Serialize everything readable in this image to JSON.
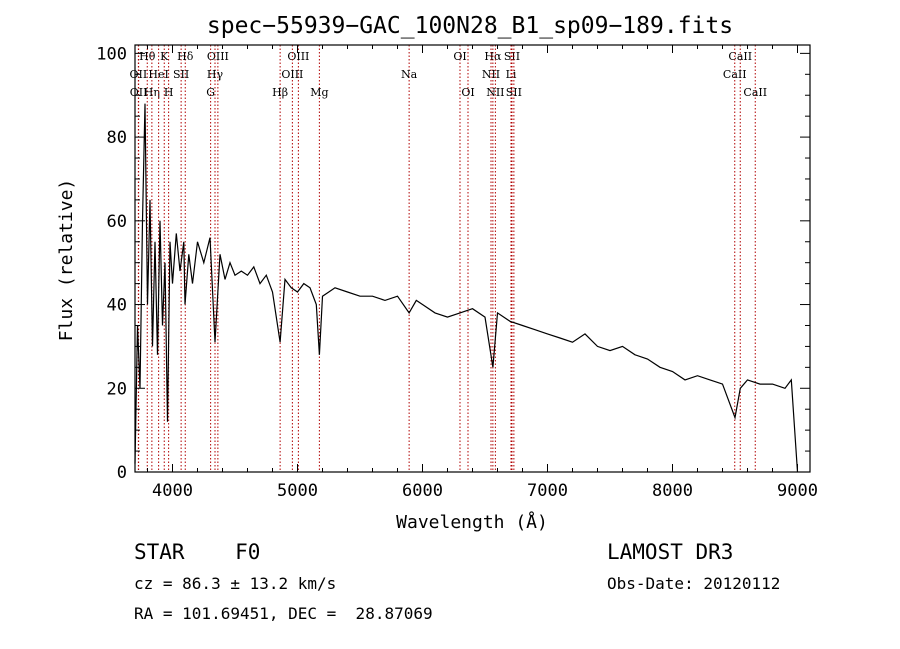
{
  "chart_data": {
    "type": "line",
    "title": "spec−55939−GAC_100N28_B1_sp09−189.fits",
    "xlabel": "Wavelength (Å)",
    "ylabel": "Flux (relative)",
    "xlim": [
      3700,
      9100
    ],
    "ylim": [
      0,
      102
    ],
    "x_ticks": [
      4000,
      5000,
      6000,
      7000,
      8000,
      9000
    ],
    "y_ticks": [
      0,
      20,
      40,
      60,
      80,
      100
    ],
    "x_tick_labels": [
      "4000",
      "5000",
      "6000",
      "7000",
      "8000",
      "9000"
    ],
    "y_tick_labels": [
      "0",
      "20",
      "40",
      "60",
      "80",
      "100"
    ],
    "series": [
      {
        "name": "flux",
        "x": [
          3700,
          3720,
          3740,
          3760,
          3780,
          3800,
          3820,
          3840,
          3860,
          3880,
          3900,
          3920,
          3940,
          3960,
          3980,
          4000,
          4030,
          4060,
          4090,
          4100,
          4130,
          4160,
          4200,
          4250,
          4300,
          4340,
          4380,
          4420,
          4460,
          4500,
          4550,
          4600,
          4650,
          4700,
          4750,
          4800,
          4861,
          4900,
          4950,
          5000,
          5050,
          5100,
          5150,
          5175,
          5200,
          5250,
          5300,
          5400,
          5500,
          5600,
          5700,
          5800,
          5893,
          5950,
          6000,
          6100,
          6200,
          6300,
          6400,
          6500,
          6563,
          6600,
          6700,
          6800,
          6900,
          7000,
          7100,
          7200,
          7300,
          7400,
          7500,
          7600,
          7700,
          7800,
          7900,
          8000,
          8100,
          8200,
          8300,
          8400,
          8500,
          8542,
          8600,
          8700,
          8800,
          8900,
          8950,
          9000
        ],
        "values": [
          2,
          35,
          20,
          60,
          88,
          40,
          65,
          30,
          55,
          28,
          60,
          35,
          50,
          12,
          55,
          45,
          57,
          48,
          55,
          40,
          52,
          45,
          55,
          50,
          56,
          31,
          52,
          46,
          50,
          47,
          48,
          47,
          49,
          45,
          47,
          43,
          31,
          46,
          44,
          43,
          45,
          44,
          40,
          28,
          42,
          43,
          44,
          43,
          42,
          42,
          41,
          42,
          38,
          41,
          40,
          38,
          37,
          38,
          39,
          37,
          25,
          38,
          36,
          35,
          34,
          33,
          32,
          31,
          33,
          30,
          29,
          30,
          28,
          27,
          25,
          24,
          22,
          23,
          22,
          21,
          13,
          20,
          22,
          21,
          21,
          20,
          22,
          0
        ]
      }
    ],
    "lines": [
      {
        "name": "Hθ",
        "wl": 3798,
        "row": 0
      },
      {
        "name": "OII",
        "wl": 3727,
        "row": 1
      },
      {
        "name": "OII",
        "wl": 3729,
        "row": 2
      },
      {
        "name": "Hη",
        "wl": 3835,
        "row": 2
      },
      {
        "name": "HeI",
        "wl": 3889,
        "row": 1
      },
      {
        "name": "K",
        "wl": 3934,
        "row": 0
      },
      {
        "name": "SII",
        "wl": 4069,
        "row": 1
      },
      {
        "name": "H",
        "wl": 3969,
        "row": 2
      },
      {
        "name": "Hδ",
        "wl": 4102,
        "row": 0
      },
      {
        "name": "OIII",
        "wl": 4363,
        "row": 0
      },
      {
        "name": "Hγ",
        "wl": 4340,
        "row": 1
      },
      {
        "name": "G",
        "wl": 4305,
        "row": 2
      },
      {
        "name": "Hβ",
        "wl": 4861,
        "row": 2
      },
      {
        "name": "OIII",
        "wl": 5007,
        "row": 0
      },
      {
        "name": "OIII",
        "wl": 4959,
        "row": 1
      },
      {
        "name": "Mg",
        "wl": 5175,
        "row": 2
      },
      {
        "name": "Na",
        "wl": 5893,
        "row": 1
      },
      {
        "name": "OI",
        "wl": 6300,
        "row": 0
      },
      {
        "name": "OI",
        "wl": 6364,
        "row": 2
      },
      {
        "name": "Hα",
        "wl": 6563,
        "row": 0
      },
      {
        "name": "NII",
        "wl": 6548,
        "row": 1
      },
      {
        "name": "NII",
        "wl": 6583,
        "row": 2
      },
      {
        "name": "Li",
        "wl": 6708,
        "row": 1
      },
      {
        "name": "SII",
        "wl": 6716,
        "row": 0
      },
      {
        "name": "SII",
        "wl": 6731,
        "row": 2
      },
      {
        "name": "CaII",
        "wl": 8542,
        "row": 0
      },
      {
        "name": "CaII",
        "wl": 8498,
        "row": 1
      },
      {
        "name": "CaII",
        "wl": 8662,
        "row": 2
      }
    ]
  },
  "info": {
    "classification": "STAR    F0",
    "survey": "LAMOST DR3",
    "cz": "cz = 86.3 ± 13.2 km/s",
    "obs_date": "Obs-Date: 20120112",
    "coords": "RA = 101.69451, DEC =  28.87069"
  },
  "colors": {
    "line": "#000000",
    "marker": "#b00000"
  }
}
